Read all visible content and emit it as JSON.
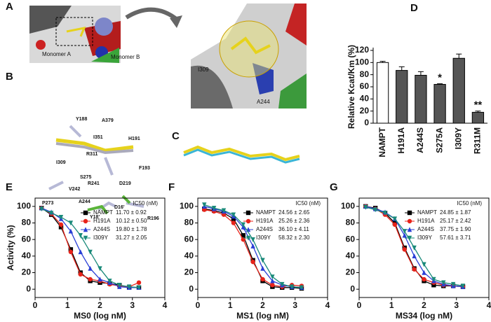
{
  "figure": {
    "panels": [
      {
        "letter": "A",
        "labels": [
          "Monomer A",
          "Monomer B",
          "I309",
          "A244"
        ]
      },
      {
        "letter": "B",
        "labels": [
          "Y188",
          "A379",
          "I351",
          "H191",
          "R311",
          "F193",
          "I309",
          "S275",
          "R241",
          "V242",
          "P273",
          "D219",
          "A244",
          "D16'",
          "R196",
          "Y18'"
        ]
      },
      {
        "letter": "C",
        "labels": []
      }
    ]
  },
  "chart_data": [
    {
      "type": "bar",
      "panel": "D",
      "ylabel": "Relative Kcat/Km (%)",
      "categories": [
        "NAMPT",
        "H191A",
        "A244S",
        "S275A",
        "I309Y",
        "R311M"
      ],
      "values": [
        100,
        87,
        79,
        64,
        107,
        18
      ],
      "errors": [
        2,
        6,
        6,
        1,
        7,
        2
      ],
      "colors": [
        "#ffffff",
        "#555555",
        "#555555",
        "#555555",
        "#555555",
        "#555555"
      ],
      "annotations": [
        {
          "x": "S275A",
          "text": "*"
        },
        {
          "x": "R311M",
          "text": "**"
        }
      ],
      "ylim": [
        0,
        120
      ],
      "yticks": [
        0,
        20,
        40,
        60,
        80,
        100,
        120
      ]
    },
    {
      "type": "line",
      "panel": "E",
      "xlabel": "MS0 (log nM)",
      "ylabel": "Activity (%)",
      "legend_title": "IC50 (nM)",
      "x": [
        0.2,
        0.5,
        0.8,
        1.1,
        1.4,
        1.7,
        2.0,
        2.3,
        2.6,
        2.9,
        3.2
      ],
      "series": [
        {
          "name": "NAMPT",
          "ic50": "11.70 ± 0.92",
          "color": "#000000",
          "marker": "square",
          "values": [
            98,
            90,
            75,
            48,
            20,
            10,
            8,
            7,
            5,
            2,
            2
          ]
        },
        {
          "name": "H191A",
          "ic50": "10.12 ± 0.50",
          "color": "#e8231a",
          "marker": "circle",
          "values": [
            98,
            91,
            78,
            45,
            18,
            12,
            10,
            6,
            4,
            3,
            8
          ]
        },
        {
          "name": "A244S",
          "ic50": "19.80 ± 1.78",
          "color": "#2a3fd6",
          "marker": "triangle",
          "values": [
            98,
            93,
            85,
            70,
            45,
            25,
            12,
            8,
            3,
            2,
            2
          ]
        },
        {
          "name": "I309Y",
          "ic50": "31.27 ± 2.05",
          "color": "#1a8a7a",
          "marker": "triangle-down",
          "values": [
            97,
            92,
            87,
            80,
            65,
            45,
            25,
            10,
            5,
            3,
            2
          ]
        }
      ],
      "xlim": [
        0,
        4
      ],
      "xticks": [
        0,
        1,
        2,
        3,
        4
      ],
      "ylim": [
        -10,
        110
      ],
      "yticks": [
        0,
        20,
        40,
        60,
        80,
        100
      ]
    },
    {
      "type": "line",
      "panel": "F",
      "xlabel": "MS1 (log nM)",
      "legend_title": "IC50 (nM)",
      "x": [
        0.2,
        0.5,
        0.8,
        1.1,
        1.4,
        1.7,
        2.0,
        2.3,
        2.6,
        2.9,
        3.2
      ],
      "series": [
        {
          "name": "NAMPT",
          "ic50": "24.56 ± 2.65",
          "color": "#000000",
          "marker": "square",
          "values": [
            97,
            95,
            92,
            85,
            65,
            35,
            10,
            3,
            2,
            2,
            1
          ]
        },
        {
          "name": "H191A",
          "ic50": "25.26 ± 2.36",
          "color": "#e8231a",
          "marker": "circle",
          "values": [
            96,
            94,
            90,
            80,
            60,
            33,
            12,
            5,
            3,
            5,
            4
          ]
        },
        {
          "name": "A244S",
          "ic50": "36.10 ± 4.11",
          "color": "#2a3fd6",
          "marker": "triangle",
          "values": [
            100,
            97,
            94,
            88,
            75,
            52,
            25,
            10,
            5,
            3,
            2
          ]
        },
        {
          "name": "I309Y",
          "ic50": "58.32 ± 2.30",
          "color": "#1a8a7a",
          "marker": "triangle-down",
          "values": [
            102,
            98,
            95,
            90,
            78,
            60,
            35,
            15,
            6,
            3,
            2
          ]
        }
      ],
      "xlim": [
        0,
        4
      ],
      "xticks": [
        0,
        1,
        2,
        3,
        4
      ],
      "ylim": [
        -10,
        110
      ],
      "yticks": [
        0,
        20,
        40,
        60,
        80,
        100
      ]
    },
    {
      "type": "line",
      "panel": "G",
      "xlabel": "MS34 (log nM)",
      "legend_title": "IC50 (nM)",
      "x": [
        0.2,
        0.5,
        0.8,
        1.1,
        1.4,
        1.7,
        2.0,
        2.3,
        2.6,
        2.9,
        3.2
      ],
      "series": [
        {
          "name": "NAMPT",
          "ic50": "24.85 ± 1.87",
          "color": "#000000",
          "marker": "square",
          "values": [
            100,
            98,
            92,
            80,
            50,
            25,
            10,
            5,
            4,
            4,
            3
          ]
        },
        {
          "name": "H191A",
          "ic50": "25.17 ± 2.42",
          "color": "#e8231a",
          "marker": "circle",
          "values": [
            100,
            97,
            90,
            78,
            48,
            24,
            12,
            8,
            5,
            4,
            3
          ]
        },
        {
          "name": "A244S",
          "ic50": "37.75 ± 1.90",
          "color": "#2a3fd6",
          "marker": "triangle",
          "values": [
            100,
            97,
            93,
            85,
            65,
            40,
            20,
            10,
            6,
            4,
            3
          ]
        },
        {
          "name": "I309Y",
          "ic50": "57.61 ± 3.71",
          "color": "#1a8a7a",
          "marker": "triangle-down",
          "values": [
            99,
            96,
            92,
            85,
            70,
            50,
            30,
            12,
            8,
            6,
            4
          ]
        }
      ],
      "xlim": [
        0,
        4
      ],
      "xticks": [
        0,
        1,
        2,
        3,
        4
      ],
      "ylim": [
        -10,
        110
      ],
      "yticks": [
        0,
        20,
        40,
        60,
        80,
        100
      ]
    }
  ]
}
